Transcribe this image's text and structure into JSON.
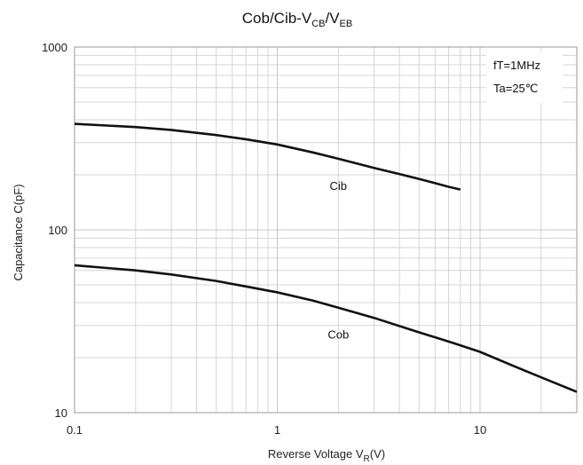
{
  "chart_data": {
    "type": "line",
    "title": {
      "main": "Cob/Cib-V",
      "sub1": "CB",
      "mid": "/V",
      "sub2": "EB"
    },
    "xlabel": {
      "main": "Reverse Voltage  V",
      "sub": "R",
      "tail": "(V)"
    },
    "ylabel": "Capacitance  C(pF)",
    "x_scale": "log",
    "y_scale": "log",
    "xlim": [
      0.1,
      30
    ],
    "ylim": [
      10,
      1000
    ],
    "x_ticks": [
      {
        "value": 0.1,
        "label": "0.1"
      },
      {
        "value": 1,
        "label": "1"
      },
      {
        "value": 10,
        "label": "10"
      }
    ],
    "y_ticks": [
      {
        "value": 1000,
        "label": "1000"
      },
      {
        "value": 100,
        "label": "100"
      },
      {
        "value": 10,
        "label": "10"
      }
    ],
    "grid": true,
    "annotations": [
      "fT=1MHz",
      "Ta=25℃"
    ],
    "series": [
      {
        "name": "Cib",
        "x": [
          0.1,
          0.2,
          0.3,
          0.5,
          0.7,
          1,
          1.5,
          2,
          3,
          4,
          5,
          6,
          7,
          8
        ],
        "y": [
          380,
          365,
          352,
          330,
          313,
          293,
          265,
          245,
          218,
          202,
          190,
          180,
          172,
          166
        ]
      },
      {
        "name": "Cob",
        "x": [
          0.1,
          0.2,
          0.3,
          0.5,
          0.7,
          1,
          1.5,
          2,
          3,
          5,
          7,
          10,
          15,
          20,
          30
        ],
        "y": [
          64,
          60,
          57,
          52.5,
          49,
          45.5,
          41,
          37.5,
          33,
          27.5,
          24.5,
          21.5,
          17.8,
          15.6,
          13
        ]
      }
    ]
  }
}
